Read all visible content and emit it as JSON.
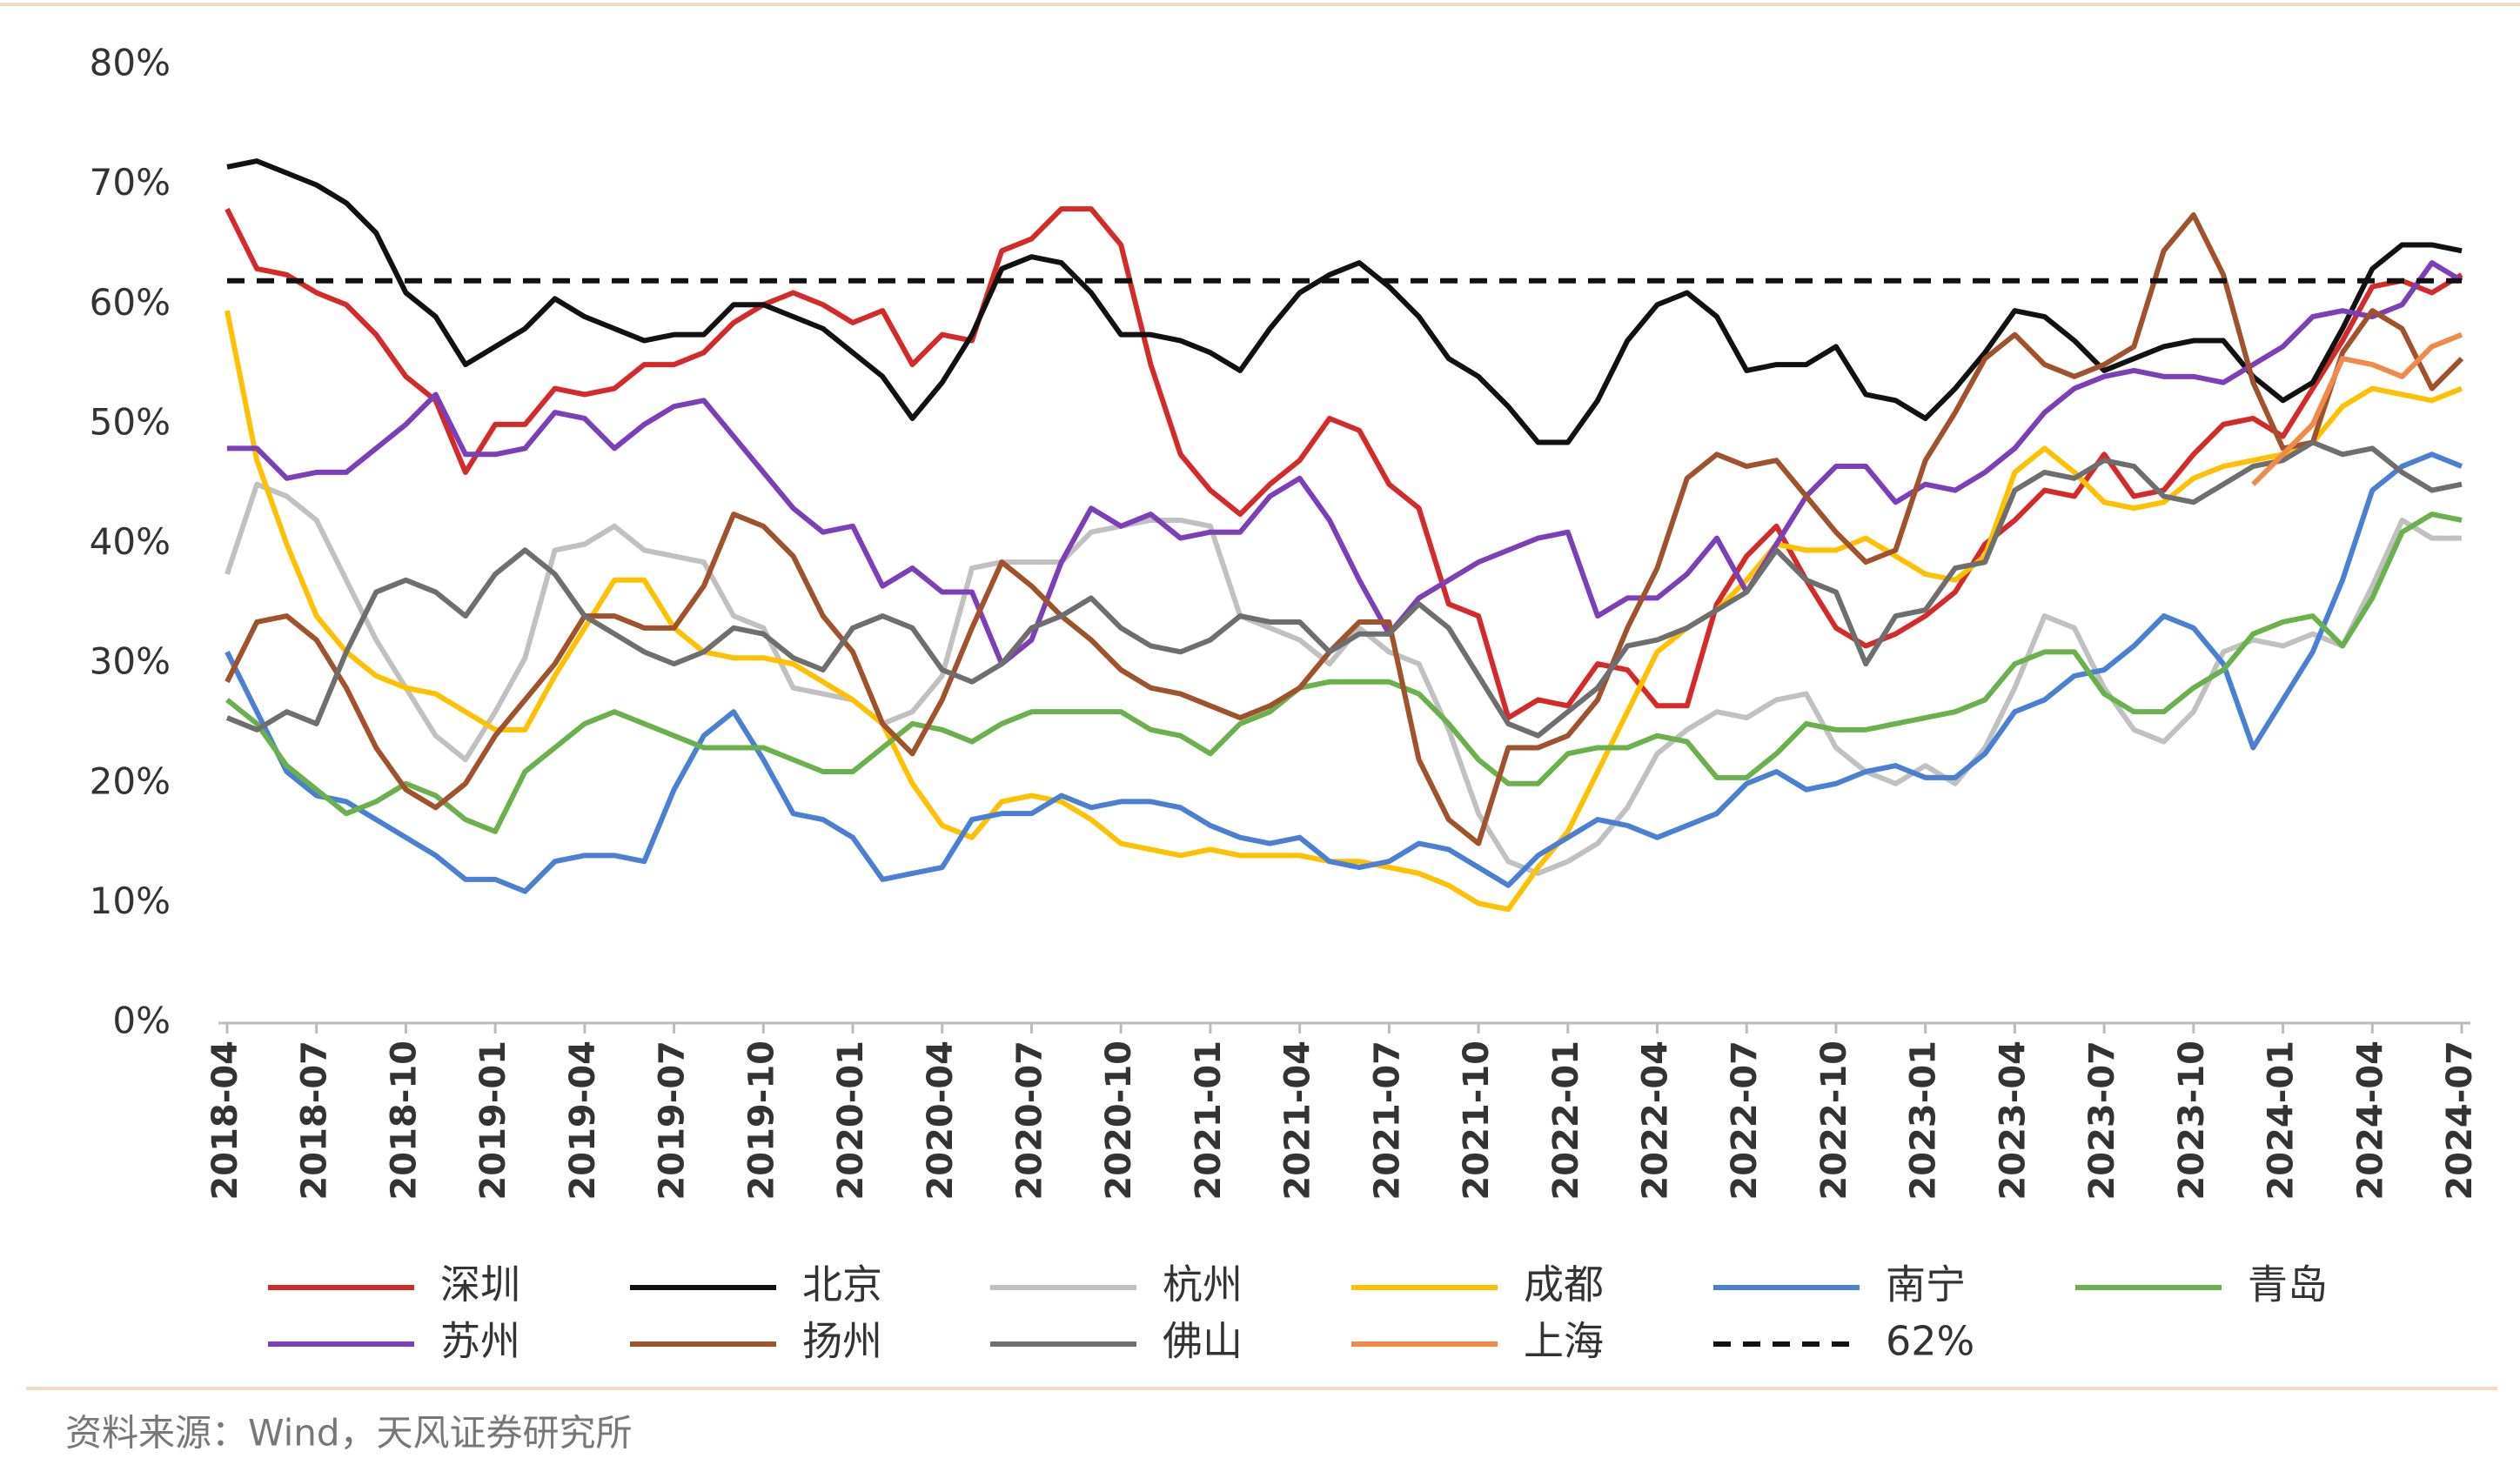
{
  "chart_data": {
    "type": "line",
    "categories": [
      "2018-04",
      null,
      null,
      "2018-07",
      null,
      null,
      "2018-10",
      null,
      null,
      "2019-01",
      null,
      null,
      "2019-04",
      null,
      null,
      "2019-07",
      null,
      null,
      "2019-10",
      null,
      null,
      "2020-01",
      null,
      null,
      "2020-04",
      null,
      null,
      "2020-07",
      null,
      null,
      "2020-10",
      null,
      null,
      "2021-01",
      null,
      null,
      "2021-04",
      null,
      null,
      "2021-07",
      null,
      null,
      "2021-10",
      null,
      null,
      "2022-01",
      null,
      null,
      "2022-04",
      null,
      null,
      "2022-07",
      null,
      null,
      "2022-10",
      null,
      null,
      "2023-01",
      null,
      null,
      "2023-04",
      null,
      null,
      "2023-07",
      null,
      null,
      "2023-10",
      null,
      null,
      "2024-01",
      null,
      null,
      "2024-04",
      null,
      null,
      "2024-07"
    ],
    "series": [
      {
        "name": "深圳",
        "color": "#d42a2a",
        "values": [
          68,
          63,
          62.5,
          61,
          60,
          57.5,
          54,
          52,
          46,
          50,
          50,
          53,
          52.5,
          53,
          55,
          55,
          56,
          58.5,
          60,
          61,
          60,
          58.5,
          59.5,
          55,
          57.5,
          57,
          64.5,
          65.5,
          68,
          68,
          65,
          55,
          47.5,
          44.5,
          42.5,
          45,
          47,
          50.5,
          49.5,
          45,
          43,
          35,
          34,
          25.5,
          27,
          26.5,
          30,
          29.5,
          26.5,
          26.5,
          35,
          39,
          41.5,
          37,
          33,
          31.5,
          32.5,
          34,
          36,
          40,
          42,
          44.5,
          44,
          47.5,
          44,
          44.5,
          47.5,
          50,
          50.5,
          49,
          53,
          57,
          61.5,
          62,
          61,
          62.5
        ]
      },
      {
        "name": "北京",
        "color": "#111111",
        "values": [
          71.5,
          72,
          71,
          70,
          68.5,
          66,
          61,
          59,
          55,
          56.5,
          58,
          60.5,
          59,
          58,
          57,
          57.5,
          57.5,
          60,
          60,
          59,
          58,
          56,
          54,
          50.5,
          53.5,
          57.5,
          63,
          64,
          63.5,
          61,
          57.5,
          57.5,
          57,
          56,
          54.5,
          58,
          61,
          62.5,
          63.5,
          61.5,
          59,
          55.5,
          54,
          51.5,
          48.5,
          48.5,
          52,
          57,
          60,
          61,
          59,
          54.5,
          55,
          55,
          56.5,
          52.5,
          52,
          50.5,
          53,
          56,
          59.5,
          59,
          57,
          54.5,
          55.5,
          56.5,
          57,
          57,
          54,
          52,
          53.5,
          58,
          63,
          65,
          65,
          64.5
        ]
      },
      {
        "name": "杭州",
        "color": "#c0c0c0",
        "values": [
          37.5,
          45,
          44,
          42,
          37,
          32,
          28,
          24,
          22,
          26,
          30.5,
          39.5,
          40,
          41.5,
          39.5,
          39,
          38.5,
          34,
          33,
          28,
          27.5,
          27,
          25,
          26,
          29,
          38,
          38.5,
          38.5,
          38.5,
          41,
          41.5,
          42,
          42,
          41.5,
          34,
          33,
          32,
          30,
          33,
          31,
          30,
          24.5,
          17.5,
          13.5,
          12.5,
          13.5,
          15,
          18,
          22.5,
          24.5,
          26,
          25.5,
          27,
          27.5,
          23,
          21,
          20,
          21.5,
          20,
          23,
          28,
          34,
          33,
          28,
          24.5,
          23.5,
          26,
          31,
          32,
          31.5,
          32.5,
          31.5,
          36.5,
          42,
          40.5,
          40.5
        ]
      },
      {
        "name": "成都",
        "color": "#ffc000",
        "values": [
          59.5,
          47,
          40,
          34,
          31,
          29,
          28,
          27.5,
          26,
          24.5,
          24.5,
          29,
          33,
          37,
          37,
          33,
          31,
          30.5,
          30.5,
          30,
          28.5,
          27,
          25,
          20,
          16.5,
          15.5,
          18.5,
          19,
          18.5,
          17,
          15,
          14.5,
          14,
          14.5,
          14,
          14,
          14,
          13.5,
          13.5,
          13,
          12.5,
          11.5,
          10,
          9.5,
          13,
          16,
          21,
          26,
          31,
          33,
          34.5,
          37,
          40,
          39.5,
          39.5,
          40.5,
          39,
          37.5,
          37,
          39,
          46,
          48,
          46,
          43.5,
          43,
          43.5,
          45.5,
          46.5,
          47,
          47.5,
          48.5,
          51.5,
          53,
          52.5,
          52,
          53
        ]
      },
      {
        "name": "南宁",
        "color": "#4a7fd4",
        "values": [
          31,
          26,
          21,
          19,
          18.5,
          17,
          15.5,
          14,
          12,
          12,
          11,
          13.5,
          14,
          14,
          13.5,
          19.5,
          24,
          26,
          22,
          17.5,
          17,
          15.5,
          12,
          12.5,
          13,
          17,
          17.5,
          17.5,
          19,
          18,
          18.5,
          18.5,
          18,
          16.5,
          15.5,
          15,
          15.5,
          13.5,
          13,
          13.5,
          15,
          14.5,
          13,
          11.5,
          14,
          15.5,
          17,
          16.5,
          15.5,
          16.5,
          17.5,
          20,
          21,
          19.5,
          20,
          21,
          21.5,
          20.5,
          20.5,
          22.5,
          26,
          27,
          29,
          29.5,
          31.5,
          34,
          33,
          30,
          23,
          27,
          31,
          37,
          44.5,
          46.5,
          47.5,
          46.5
        ]
      },
      {
        "name": "青岛",
        "color": "#6ab04c",
        "values": [
          27,
          25,
          21.5,
          19.5,
          17.5,
          18.5,
          20,
          19,
          17,
          16,
          21,
          23,
          25,
          26,
          25,
          24,
          23,
          23,
          23,
          22,
          21,
          21,
          23,
          25,
          24.5,
          23.5,
          25,
          26,
          26,
          26,
          26,
          24.5,
          24,
          22.5,
          25,
          26,
          28,
          28.5,
          28.5,
          28.5,
          27.5,
          25,
          22,
          20,
          20,
          22.5,
          23,
          23,
          24,
          23.5,
          20.5,
          20.5,
          22.5,
          25,
          24.5,
          24.5,
          25,
          25.5,
          26,
          27,
          30,
          31,
          31,
          27.5,
          26,
          26,
          28,
          29.5,
          32.5,
          33.5,
          34,
          31.5,
          35.5,
          41,
          42.5,
          42
        ]
      },
      {
        "name": "苏州",
        "color": "#7b3fb8",
        "values": [
          48,
          48,
          45.5,
          46,
          46,
          48,
          50,
          52.5,
          47.5,
          47.5,
          48,
          51,
          50.5,
          48,
          50,
          51.5,
          52,
          49,
          46,
          43,
          41,
          41.5,
          36.5,
          38,
          36,
          36,
          30,
          32,
          38.5,
          43,
          41.5,
          42.5,
          40.5,
          41,
          41,
          44,
          45.5,
          42,
          37,
          32.5,
          35.5,
          37,
          38.5,
          39.5,
          40.5,
          41,
          34,
          35.5,
          35.5,
          37.5,
          40.5,
          36,
          40,
          44,
          46.5,
          46.5,
          43.5,
          45,
          44.5,
          46,
          48,
          51,
          53,
          54,
          54.5,
          54,
          54,
          53.5,
          55,
          56.5,
          59,
          59.5,
          59,
          60,
          63.5,
          62
        ]
      },
      {
        "name": "扬州",
        "color": "#a0522d",
        "values": [
          28.5,
          33.5,
          34,
          32,
          28,
          23,
          19.5,
          18,
          20,
          24,
          27,
          30,
          34,
          34,
          33,
          33,
          36.5,
          42.5,
          41.5,
          39,
          34,
          31,
          25,
          22.5,
          27,
          33,
          38.5,
          36.5,
          34,
          32,
          29.5,
          28,
          27.5,
          26.5,
          25.5,
          26.5,
          28,
          31,
          33.5,
          33.5,
          22,
          17,
          15,
          23,
          23,
          24,
          27,
          33,
          38,
          45.5,
          47.5,
          46.5,
          47,
          44,
          41,
          38.5,
          39.5,
          47,
          51,
          55.5,
          57.5,
          55,
          54,
          55,
          56.5,
          64.5,
          67.5,
          62.5,
          53.5,
          48,
          48.5,
          56,
          59.5,
          58,
          53,
          55.5
        ]
      },
      {
        "name": "佛山",
        "color": "#6e6e6e",
        "values": [
          25.5,
          24.5,
          26,
          25,
          31,
          36,
          37,
          36,
          34,
          37.5,
          39.5,
          37.5,
          34,
          32.5,
          31,
          30,
          31,
          33,
          32.5,
          30.5,
          29.5,
          33,
          34,
          33,
          29.5,
          28.5,
          30,
          33,
          34,
          35.5,
          33,
          31.5,
          31,
          32,
          34,
          33.5,
          33.5,
          31,
          32.5,
          32.5,
          35,
          33,
          29,
          25,
          24,
          26,
          28,
          31.5,
          32,
          33,
          34.5,
          36,
          39.5,
          37,
          36,
          30,
          34,
          34.5,
          38,
          38.5,
          44.5,
          46,
          45.5,
          47,
          46.5,
          44,
          43.5,
          45,
          46.5,
          47,
          48.5,
          47.5,
          48,
          46,
          44.5,
          45
        ]
      },
      {
        "name": "上海",
        "color": "#f08a4b",
        "values": [
          null,
          null,
          null,
          null,
          null,
          null,
          null,
          null,
          null,
          null,
          null,
          null,
          null,
          null,
          null,
          null,
          null,
          null,
          null,
          null,
          null,
          null,
          null,
          null,
          null,
          null,
          null,
          null,
          null,
          null,
          null,
          null,
          null,
          null,
          null,
          null,
          null,
          null,
          null,
          null,
          null,
          null,
          null,
          null,
          null,
          null,
          null,
          null,
          null,
          null,
          null,
          null,
          null,
          null,
          null,
          null,
          null,
          null,
          null,
          null,
          null,
          null,
          null,
          null,
          null,
          null,
          null,
          null,
          45,
          47.5,
          50,
          55.5,
          55,
          54,
          56.5,
          57.5
        ]
      }
    ],
    "reference_line": {
      "name": "62%",
      "value": 62,
      "color": "#111111"
    },
    "ylim": [
      0,
      80
    ],
    "yticks": [
      {
        "value": 0,
        "label": "0%"
      },
      {
        "value": 10,
        "label": "10%"
      },
      {
        "value": 20,
        "label": "20%"
      },
      {
        "value": 30,
        "label": "30%"
      },
      {
        "value": 40,
        "label": "40%"
      },
      {
        "value": 50,
        "label": "50%"
      },
      {
        "value": 60,
        "label": "60%"
      },
      {
        "value": 70,
        "label": "70%"
      },
      {
        "value": 80,
        "label": "80%"
      }
    ],
    "grid": false,
    "source": "资料来源：Wind，天风证券研究所"
  }
}
